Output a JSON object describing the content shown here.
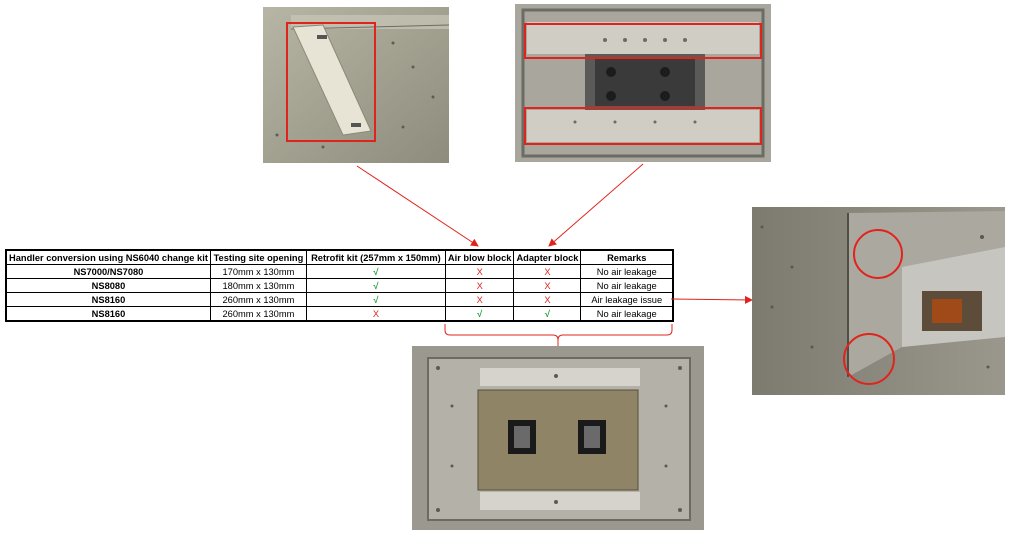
{
  "table": {
    "headers": [
      "Handler conversion using NS6040 change kit",
      "Testing  site opening",
      "Retrofit kit (257mm x 150mm)",
      "Air blow block",
      "Adapter block",
      "Remarks"
    ],
    "rows": [
      {
        "model": "NS7000/NS7080",
        "opening": "170mm x 130mm",
        "retrofit": "√",
        "air_blow": "X",
        "adapter": "X",
        "remarks": "No air leakage"
      },
      {
        "model": "NS8080",
        "opening": "180mm x 130mm",
        "retrofit": "√",
        "air_blow": "X",
        "adapter": "X",
        "remarks": "No air leakage"
      },
      {
        "model": "NS8160",
        "opening": "260mm x 130mm",
        "retrofit": "√",
        "air_blow": "X",
        "adapter": "X",
        "remarks": "Air leakage issue"
      },
      {
        "model": "NS8160",
        "opening": "260mm x 130mm",
        "retrofit": "X",
        "air_blow": "√",
        "adapter": "√",
        "remarks": "No air leakage"
      }
    ]
  },
  "colors": {
    "annotation_red": "#e0241c",
    "check_green": "#1f9e3a",
    "metal": "#9c9c94"
  },
  "photos": [
    {
      "name": "air-blow-block-photo"
    },
    {
      "name": "adapter-block-photo"
    },
    {
      "name": "air-leakage-detail-photo"
    },
    {
      "name": "retrofit-kit-photo"
    }
  ]
}
